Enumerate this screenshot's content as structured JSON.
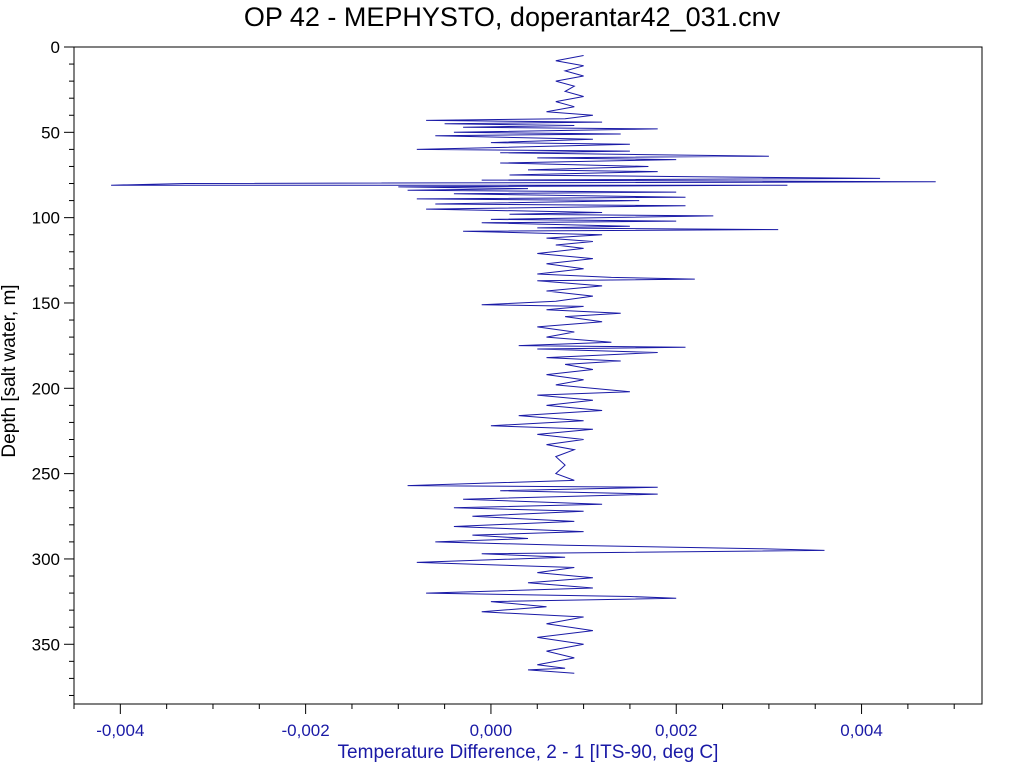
{
  "chart_data": {
    "type": "line",
    "title": "OP 42 - MEPHYSTO, doperantar42_031.cnv",
    "xlabel": "Temperature Difference, 2 - 1 [ITS-90, deg C]",
    "ylabel": "Depth [salt water, m]",
    "xlim": [
      -0.0045,
      0.0053
    ],
    "ylim": [
      0,
      385
    ],
    "y_inverted": true,
    "xticks": [
      -0.004,
      -0.002,
      0.0,
      0.002,
      0.004
    ],
    "xtick_labels": [
      "-0,004",
      "-0,002",
      "0,000",
      "0,002",
      "0,004"
    ],
    "yticks": [
      0,
      50,
      100,
      150,
      200,
      250,
      300,
      350
    ],
    "ytick_labels": [
      "0",
      "50",
      "100",
      "150",
      "200",
      "250",
      "300",
      "350"
    ],
    "grid": false,
    "legend": "none",
    "series": [
      {
        "color": "#1a1aa6",
        "points": [
          [
            0.001,
            5
          ],
          [
            0.0007,
            8
          ],
          [
            0.001,
            11
          ],
          [
            0.0008,
            14
          ],
          [
            0.001,
            17
          ],
          [
            0.0007,
            20
          ],
          [
            0.0009,
            23
          ],
          [
            0.0008,
            26
          ],
          [
            0.001,
            29
          ],
          [
            0.0007,
            32
          ],
          [
            0.0009,
            35
          ],
          [
            0.0006,
            38
          ],
          [
            0.0011,
            40
          ],
          [
            0.0008,
            42
          ],
          [
            -0.0007,
            43
          ],
          [
            0.0012,
            44
          ],
          [
            -0.0005,
            45
          ],
          [
            0.0009,
            46
          ],
          [
            -0.0003,
            47
          ],
          [
            0.0018,
            48
          ],
          [
            -0.0004,
            50
          ],
          [
            0.0014,
            51
          ],
          [
            -0.0006,
            52
          ],
          [
            0.0011,
            54
          ],
          [
            0.0,
            56
          ],
          [
            0.0015,
            57
          ],
          [
            -0.0008,
            60
          ],
          [
            0.0015,
            61
          ],
          [
            0.0001,
            62
          ],
          [
            0.003,
            64
          ],
          [
            0.0005,
            65
          ],
          [
            0.002,
            66
          ],
          [
            0.0001,
            68
          ],
          [
            0.0017,
            70
          ],
          [
            0.0004,
            72
          ],
          [
            0.0018,
            73
          ],
          [
            0.0002,
            75
          ],
          [
            0.0022,
            76
          ],
          [
            0.0042,
            77
          ],
          [
            -0.0001,
            78
          ],
          [
            0.0048,
            79
          ],
          [
            -0.0033,
            80
          ],
          [
            -0.0041,
            81
          ],
          [
            0.0032,
            81
          ],
          [
            -0.001,
            82
          ],
          [
            0.0004,
            83
          ],
          [
            -0.0009,
            84
          ],
          [
            0.002,
            85
          ],
          [
            -0.0004,
            86
          ],
          [
            0.0021,
            88
          ],
          [
            -0.0008,
            89
          ],
          [
            0.0016,
            90
          ],
          [
            -0.0006,
            92
          ],
          [
            0.0021,
            93
          ],
          [
            -0.0007,
            95
          ],
          [
            0.0012,
            97
          ],
          [
            0.0002,
            98
          ],
          [
            0.0024,
            99
          ],
          [
            0.0,
            101
          ],
          [
            0.002,
            102
          ],
          [
            -0.0001,
            103
          ],
          [
            0.0015,
            105
          ],
          [
            0.0005,
            106
          ],
          [
            0.0031,
            107
          ],
          [
            -0.0003,
            108
          ],
          [
            0.0012,
            110
          ],
          [
            0.0006,
            112
          ],
          [
            0.0011,
            114
          ],
          [
            0.0007,
            116
          ],
          [
            0.001,
            118
          ],
          [
            0.0005,
            121
          ],
          [
            0.0011,
            124
          ],
          [
            0.0006,
            127
          ],
          [
            0.001,
            130
          ],
          [
            0.0005,
            133
          ],
          [
            0.0013,
            135
          ],
          [
            0.0022,
            136
          ],
          [
            0.0005,
            137
          ],
          [
            0.0012,
            140
          ],
          [
            0.0006,
            143
          ],
          [
            0.0011,
            146
          ],
          [
            0.0007,
            149
          ],
          [
            -0.0001,
            151
          ],
          [
            0.001,
            152
          ],
          [
            0.0006,
            154
          ],
          [
            0.0014,
            156
          ],
          [
            0.0008,
            158
          ],
          [
            0.0012,
            161
          ],
          [
            0.0005,
            164
          ],
          [
            0.0009,
            167
          ],
          [
            0.0006,
            170
          ],
          [
            0.0013,
            173
          ],
          [
            0.0003,
            175
          ],
          [
            0.0021,
            176
          ],
          [
            0.0005,
            177
          ],
          [
            0.0018,
            179
          ],
          [
            0.0006,
            182
          ],
          [
            0.0014,
            184
          ],
          [
            0.0008,
            186
          ],
          [
            0.0011,
            189
          ],
          [
            0.0006,
            192
          ],
          [
            0.001,
            195
          ],
          [
            0.0007,
            198
          ],
          [
            0.0015,
            202
          ],
          [
            0.0005,
            204
          ],
          [
            0.0011,
            207
          ],
          [
            0.0006,
            210
          ],
          [
            0.0012,
            213
          ],
          [
            0.0003,
            216
          ],
          [
            0.001,
            219
          ],
          [
            0.0,
            222
          ],
          [
            0.0011,
            224
          ],
          [
            0.0005,
            227
          ],
          [
            0.001,
            230
          ],
          [
            0.0006,
            233
          ],
          [
            0.0009,
            236
          ],
          [
            0.0007,
            240
          ],
          [
            0.0008,
            245
          ],
          [
            0.0007,
            250
          ],
          [
            0.0009,
            254
          ],
          [
            -0.0009,
            257
          ],
          [
            0.0018,
            258
          ],
          [
            0.0001,
            260
          ],
          [
            0.0018,
            262
          ],
          [
            -0.0003,
            265
          ],
          [
            0.0012,
            268
          ],
          [
            -0.0004,
            270
          ],
          [
            0.001,
            272
          ],
          [
            -0.0002,
            275
          ],
          [
            0.0009,
            278
          ],
          [
            -0.0004,
            281
          ],
          [
            0.001,
            284
          ],
          [
            -0.0002,
            286
          ],
          [
            0.0004,
            288
          ],
          [
            -0.0006,
            290
          ],
          [
            0.0008,
            292
          ],
          [
            0.0029,
            294
          ],
          [
            0.0036,
            295
          ],
          [
            -0.0001,
            297
          ],
          [
            0.0008,
            299
          ],
          [
            -0.0008,
            302
          ],
          [
            0.0009,
            305
          ],
          [
            0.0005,
            308
          ],
          [
            0.0011,
            311
          ],
          [
            0.0004,
            314
          ],
          [
            0.0011,
            317
          ],
          [
            -0.0007,
            320
          ],
          [
            0.0015,
            322
          ],
          [
            0.002,
            323
          ],
          [
            0.0,
            325
          ],
          [
            0.0006,
            328
          ],
          [
            -0.0001,
            331
          ],
          [
            0.001,
            334
          ],
          [
            0.0006,
            338
          ],
          [
            0.0011,
            342
          ],
          [
            0.0005,
            346
          ],
          [
            0.001,
            350
          ],
          [
            0.0006,
            354
          ],
          [
            0.0009,
            358
          ],
          [
            0.0005,
            362
          ],
          [
            0.0008,
            364
          ],
          [
            0.0004,
            365
          ],
          [
            0.0009,
            367
          ]
        ]
      }
    ]
  }
}
